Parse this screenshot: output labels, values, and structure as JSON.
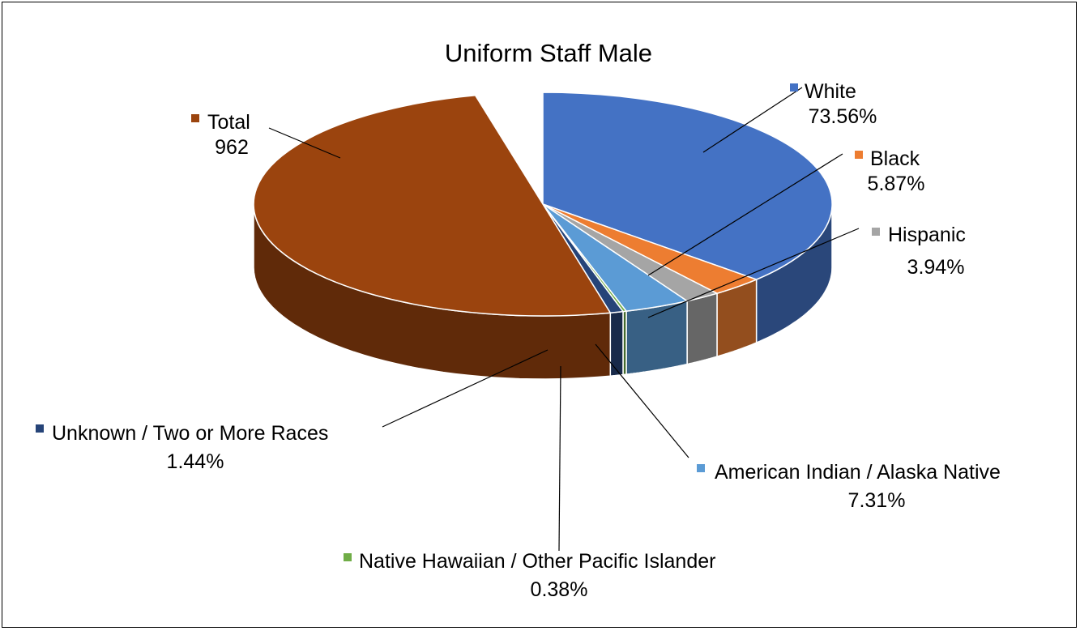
{
  "chart_data": {
    "type": "pie",
    "style": "3d",
    "title": "Uniform Staff Male",
    "slices": [
      {
        "name": "Total",
        "value_label": "962",
        "share": 0.5,
        "color": "#9B440E"
      },
      {
        "name": "White",
        "value_label": "73.56%",
        "share": 0.3678,
        "color": "#4472C4"
      },
      {
        "name": "Black",
        "value_label": "5.87%",
        "share": 0.02935,
        "color": "#ED7D31"
      },
      {
        "name": "Hispanic",
        "value_label": "3.94%",
        "share": 0.0197,
        "color": "#A5A5A5"
      },
      {
        "name": "American Indian / Alaska Native",
        "value_label": "7.31%",
        "share": 0.03655,
        "color": "#5B9BD5"
      },
      {
        "name": "Native Hawaiian / Other Pacific Islander",
        "value_label": "0.38%",
        "share": 0.0019,
        "color": "#70AD47"
      },
      {
        "name": "Unknown / Two or More Races",
        "value_label": "1.44%",
        "share": 0.0072,
        "color": "#264478"
      }
    ]
  }
}
